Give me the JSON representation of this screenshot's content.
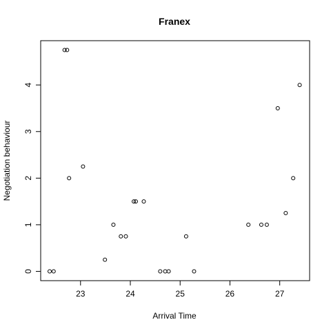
{
  "chart_data": {
    "type": "scatter",
    "title": "Franex",
    "xlabel": "Arrival Time",
    "ylabel": "Negotiation behaviour",
    "xlim": [
      22.2,
      27.6
    ],
    "ylim": [
      -0.2,
      4.95
    ],
    "xticks": [
      23,
      24,
      25,
      26,
      27
    ],
    "yticks": [
      0,
      1,
      2,
      3,
      4
    ],
    "grid": false,
    "points": [
      {
        "x": 22.38,
        "y": 0
      },
      {
        "x": 22.46,
        "y": 0
      },
      {
        "x": 22.68,
        "y": 4.75
      },
      {
        "x": 22.73,
        "y": 4.75
      },
      {
        "x": 22.77,
        "y": 2
      },
      {
        "x": 23.05,
        "y": 2.25
      },
      {
        "x": 23.49,
        "y": 0.25
      },
      {
        "x": 23.66,
        "y": 1
      },
      {
        "x": 23.81,
        "y": 0.75
      },
      {
        "x": 23.91,
        "y": 0.75
      },
      {
        "x": 24.07,
        "y": 1.5
      },
      {
        "x": 24.11,
        "y": 1.5
      },
      {
        "x": 24.27,
        "y": 1.5
      },
      {
        "x": 24.6,
        "y": 0
      },
      {
        "x": 24.7,
        "y": 0
      },
      {
        "x": 24.77,
        "y": 0
      },
      {
        "x": 25.12,
        "y": 0.75
      },
      {
        "x": 25.28,
        "y": 0
      },
      {
        "x": 26.37,
        "y": 1
      },
      {
        "x": 26.63,
        "y": 1
      },
      {
        "x": 26.74,
        "y": 1
      },
      {
        "x": 26.96,
        "y": 3.5
      },
      {
        "x": 27.12,
        "y": 1.25
      },
      {
        "x": 27.27,
        "y": 2
      },
      {
        "x": 27.4,
        "y": 4
      }
    ]
  }
}
